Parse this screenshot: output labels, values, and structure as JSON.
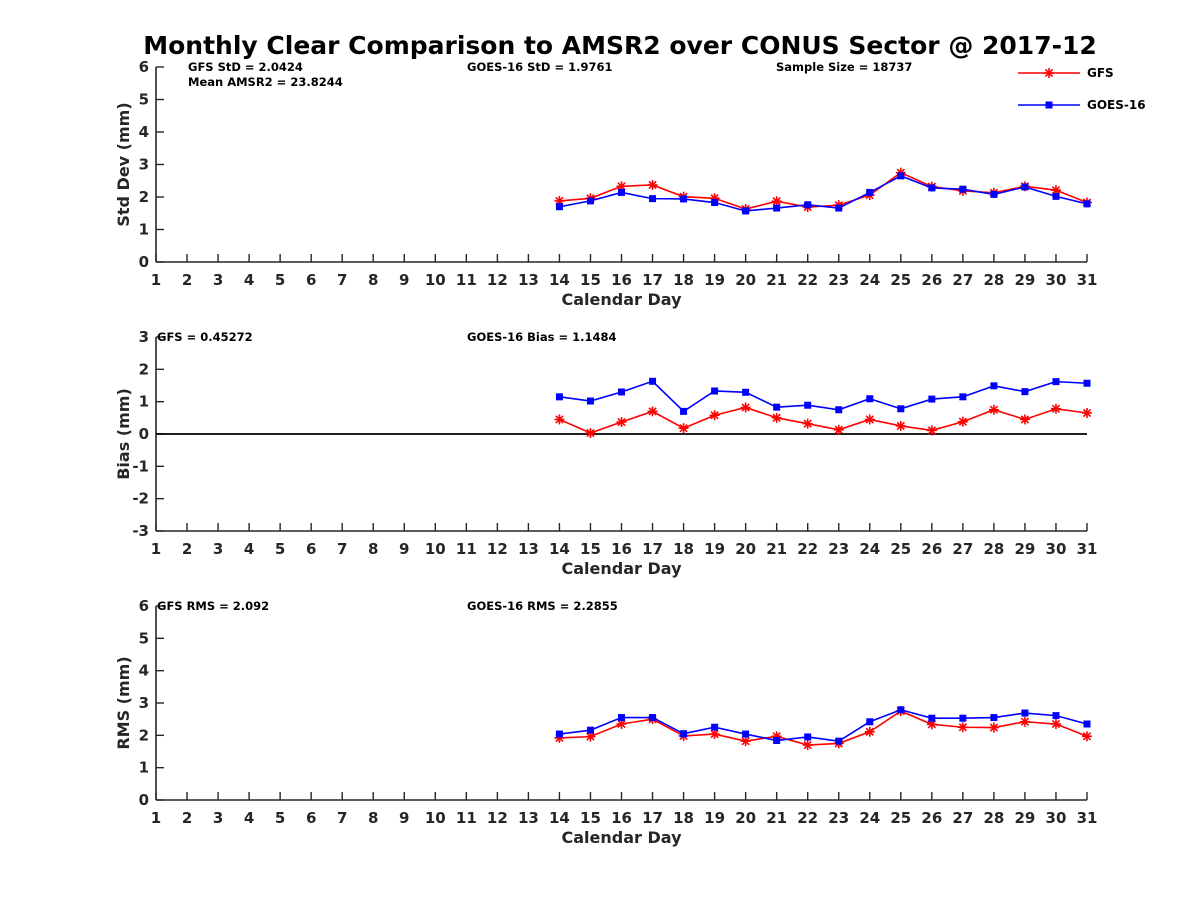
{
  "title": "Monthly Clear Comparison to AMSR2 over CONUS Sector @ 2017-12",
  "colors": {
    "GFS": "#ff0000",
    "GOES-16": "#0000ff",
    "axis": "#262626"
  },
  "legend": {
    "placement": "top-right",
    "entries": [
      "GFS",
      "GOES-16"
    ]
  },
  "panels_text": {
    "std": {
      "stat1": "GFS StD = 2.0424",
      "stat1b": "Mean AMSR2 = 23.8244",
      "stat2": "GOES-16 StD = 1.9761",
      "stat3": "Sample Size = 18737"
    },
    "bias": {
      "stat1": "GFS = 0.45272",
      "stat2": "GOES-16 Bias = 1.1484"
    },
    "rms": {
      "stat1": "GFS RMS = 2.092",
      "stat2": "GOES-16 RMS = 2.2855"
    }
  },
  "chart_data": [
    {
      "type": "line",
      "xlabel": "Calendar Day",
      "ylabel": "Std Dev (mm)",
      "xlim": [
        1,
        31
      ],
      "ylim": [
        0,
        6
      ],
      "xticks": [
        1,
        2,
        3,
        4,
        5,
        6,
        7,
        8,
        9,
        10,
        11,
        12,
        13,
        14,
        15,
        16,
        17,
        18,
        19,
        20,
        21,
        22,
        23,
        24,
        25,
        26,
        27,
        28,
        29,
        30,
        31
      ],
      "yticks": [
        0,
        1,
        2,
        3,
        4,
        5,
        6
      ],
      "x": [
        14,
        15,
        16,
        17,
        18,
        19,
        20,
        21,
        22,
        23,
        24,
        25,
        26,
        27,
        28,
        29,
        30,
        31
      ],
      "series": [
        {
          "name": "GFS",
          "marker": "asterisk",
          "values": [
            1.88,
            1.96,
            2.33,
            2.37,
            2.01,
            1.96,
            1.63,
            1.87,
            1.69,
            1.75,
            2.06,
            2.75,
            2.32,
            2.19,
            2.13,
            2.33,
            2.21,
            1.83
          ]
        },
        {
          "name": "GOES-16",
          "marker": "square",
          "values": [
            1.7,
            1.88,
            2.14,
            1.95,
            1.94,
            1.83,
            1.57,
            1.66,
            1.76,
            1.66,
            2.14,
            2.65,
            2.28,
            2.24,
            2.08,
            2.31,
            2.02,
            1.79
          ]
        }
      ]
    },
    {
      "type": "line",
      "xlabel": "Calendar Day",
      "ylabel": "Bias (mm)",
      "xlim": [
        1,
        31
      ],
      "ylim": [
        -3,
        3
      ],
      "xticks": [
        1,
        2,
        3,
        4,
        5,
        6,
        7,
        8,
        9,
        10,
        11,
        12,
        13,
        14,
        15,
        16,
        17,
        18,
        19,
        20,
        21,
        22,
        23,
        24,
        25,
        26,
        27,
        28,
        29,
        30,
        31
      ],
      "yticks": [
        -3,
        -2,
        -1,
        0,
        1,
        2,
        3
      ],
      "zero_line": true,
      "x": [
        14,
        15,
        16,
        17,
        18,
        19,
        20,
        21,
        22,
        23,
        24,
        25,
        26,
        27,
        28,
        29,
        30,
        31
      ],
      "series": [
        {
          "name": "GFS",
          "marker": "asterisk",
          "values": [
            0.45,
            0.03,
            0.37,
            0.7,
            0.18,
            0.58,
            0.82,
            0.5,
            0.32,
            0.13,
            0.45,
            0.25,
            0.11,
            0.38,
            0.75,
            0.45,
            0.78,
            0.65
          ]
        },
        {
          "name": "GOES-16",
          "marker": "square",
          "values": [
            1.15,
            1.02,
            1.3,
            1.63,
            0.7,
            1.33,
            1.29,
            0.83,
            0.89,
            0.75,
            1.09,
            0.78,
            1.08,
            1.15,
            1.49,
            1.31,
            1.62,
            1.57
          ]
        }
      ]
    },
    {
      "type": "line",
      "xlabel": "Calendar Day",
      "ylabel": "RMS (mm)",
      "xlim": [
        1,
        31
      ],
      "ylim": [
        0,
        6
      ],
      "xticks": [
        1,
        2,
        3,
        4,
        5,
        6,
        7,
        8,
        9,
        10,
        11,
        12,
        13,
        14,
        15,
        16,
        17,
        18,
        19,
        20,
        21,
        22,
        23,
        24,
        25,
        26,
        27,
        28,
        29,
        30,
        31
      ],
      "yticks": [
        0,
        1,
        2,
        3,
        4,
        5,
        6
      ],
      "x": [
        14,
        15,
        16,
        17,
        18,
        19,
        20,
        21,
        22,
        23,
        24,
        25,
        26,
        27,
        28,
        29,
        30,
        31
      ],
      "series": [
        {
          "name": "GFS",
          "marker": "asterisk",
          "values": [
            1.92,
            1.96,
            2.35,
            2.5,
            1.98,
            2.04,
            1.82,
            1.97,
            1.7,
            1.75,
            2.11,
            2.75,
            2.34,
            2.25,
            2.24,
            2.42,
            2.35,
            1.97
          ]
        },
        {
          "name": "GOES-16",
          "marker": "square",
          "values": [
            2.04,
            2.16,
            2.55,
            2.55,
            2.05,
            2.25,
            2.04,
            1.84,
            1.95,
            1.82,
            2.42,
            2.79,
            2.53,
            2.53,
            2.55,
            2.69,
            2.61,
            2.35
          ]
        }
      ]
    }
  ]
}
